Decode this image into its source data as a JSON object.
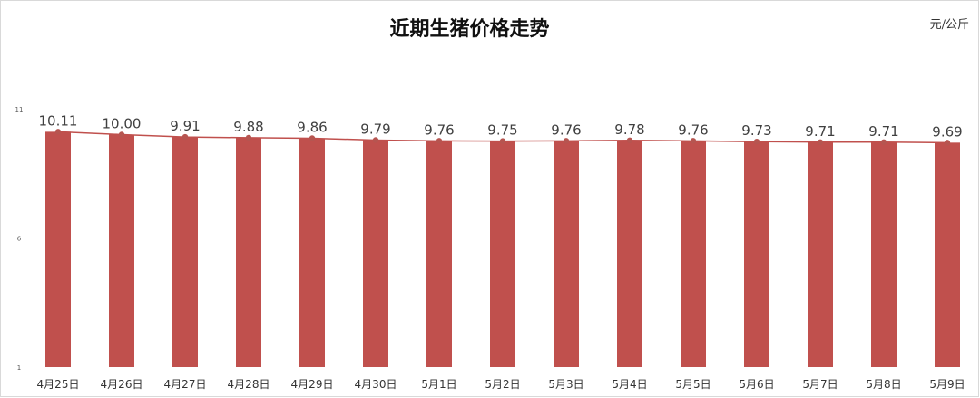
{
  "chart_data": {
    "type": "bar",
    "title": "近期生猪价格走势",
    "unit": "元/公斤",
    "categories": [
      "4月25日",
      "4月26日",
      "4月27日",
      "4月28日",
      "4月29日",
      "4月30日",
      "5月1日",
      "5月2日",
      "5月3日",
      "5月4日",
      "5月5日",
      "5月6日",
      "5月7日",
      "5月8日",
      "5月9日"
    ],
    "values": [
      10.11,
      10.0,
      9.91,
      9.88,
      9.86,
      9.79,
      9.76,
      9.75,
      9.76,
      9.78,
      9.76,
      9.73,
      9.71,
      9.71,
      9.69
    ],
    "value_labels": [
      "10.11",
      "10.00",
      "9.91",
      "9.88",
      "9.86",
      "9.79",
      "9.76",
      "9.75",
      "9.76",
      "9.78",
      "9.76",
      "9.73",
      "9.71",
      "9.71",
      "9.69"
    ],
    "overlay": "line",
    "ylim": [
      1,
      11
    ],
    "yticks": [
      "1",
      "6",
      "11"
    ],
    "grid": false,
    "bar_color": "#c0504d",
    "line_color": "#c0504d",
    "marker_color": "#b65550"
  }
}
